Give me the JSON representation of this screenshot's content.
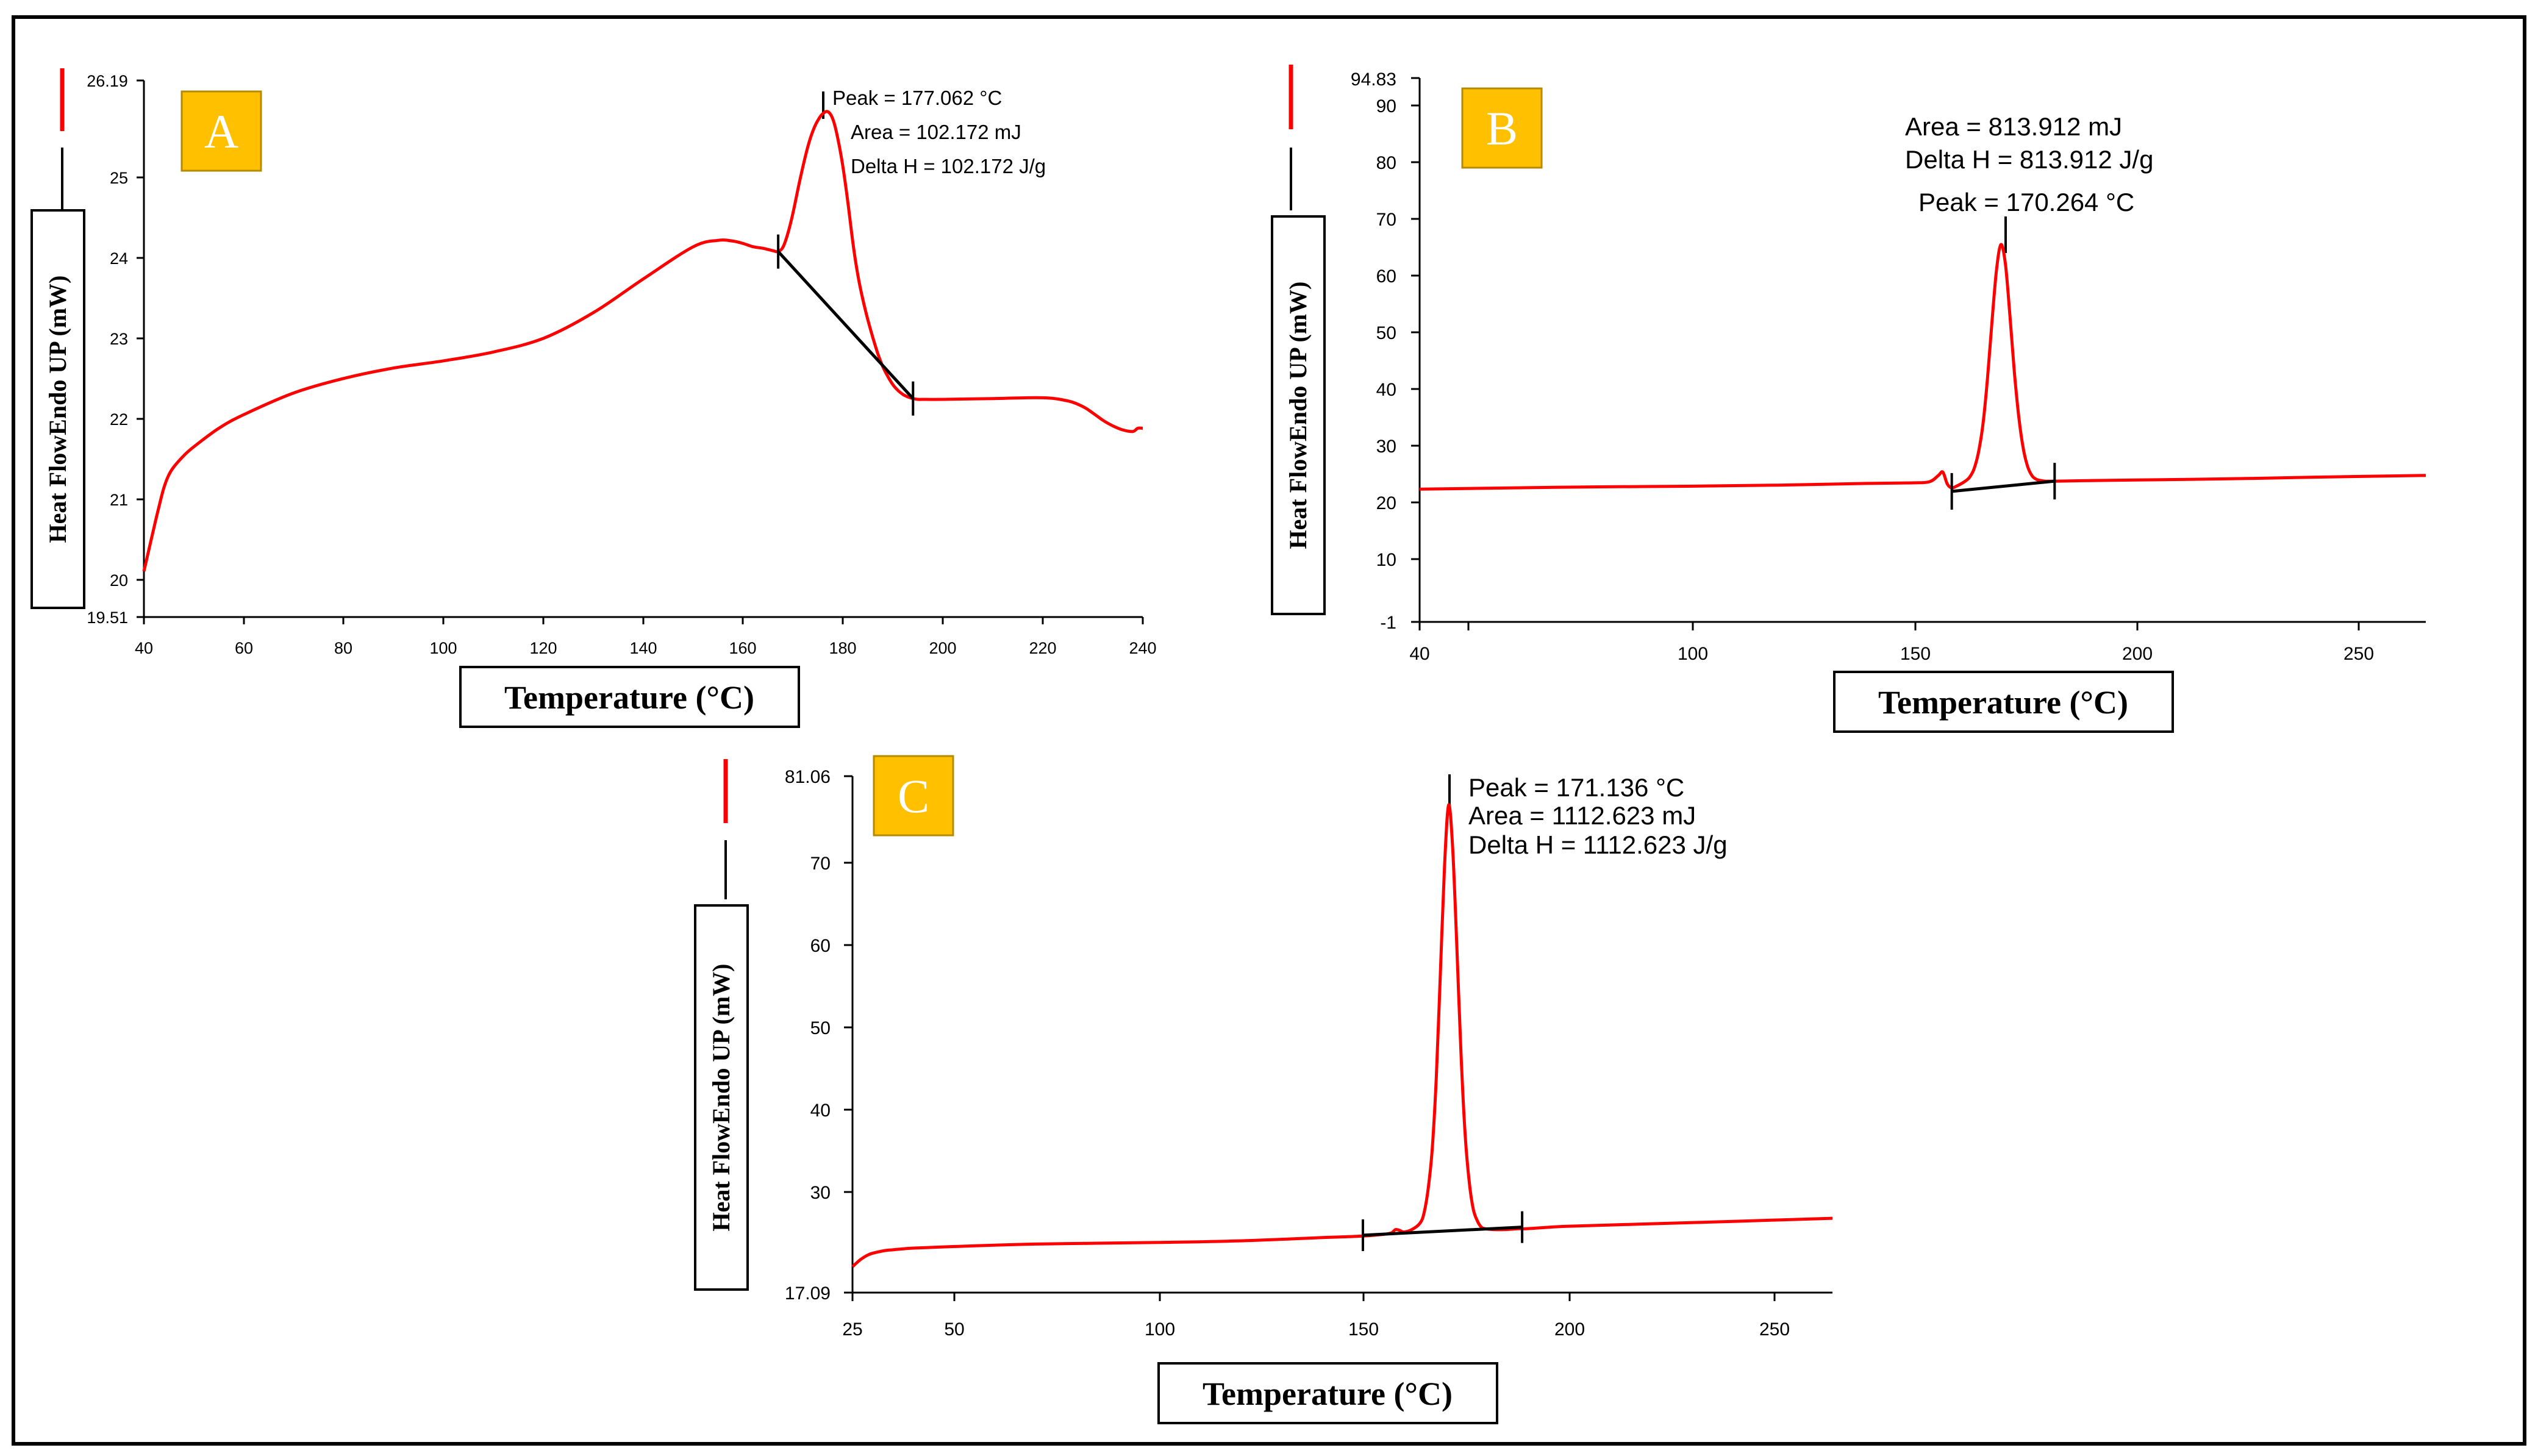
{
  "colors": {
    "curve": "#ff0000",
    "baseline": "#000000",
    "badge_fill": "#ffc000",
    "badge_stroke": "#b48a00"
  },
  "chart_data": [
    {
      "panel": "A",
      "type": "line",
      "xlabel": "Temperature (°C)",
      "ylabel": "Heat FlowEndo UP (mW)",
      "xlim": [
        40,
        240
      ],
      "ylim": [
        19.51,
        26.19
      ],
      "xticks": [
        "40",
        "60",
        "80",
        "100",
        "120",
        "140",
        "160",
        "180",
        "200",
        "220",
        "240"
      ],
      "yticks": [
        "19.51",
        "20",
        "21",
        "22",
        "23",
        "24",
        "25",
        "26.19"
      ],
      "annotations": [
        "Peak = 177.062 °C",
        "Area = 102.172 mJ",
        "Delta H = 102.172 J/g"
      ],
      "x": [
        40,
        41,
        42,
        43,
        44,
        45,
        46,
        48,
        50,
        55,
        60,
        70,
        80,
        90,
        100,
        110,
        120,
        130,
        140,
        150,
        155,
        158,
        160,
        162,
        164,
        166,
        167,
        168,
        169,
        170,
        171,
        172,
        173,
        174,
        175,
        176,
        177,
        178,
        179,
        180,
        181,
        182,
        183,
        184,
        185,
        186,
        187,
        188,
        189,
        190,
        191,
        192,
        193,
        194,
        195,
        196,
        200,
        210,
        220,
        225,
        228,
        230,
        232,
        234,
        236,
        238,
        239,
        240
      ],
      "y": [
        20.08,
        20.35,
        20.62,
        20.88,
        21.12,
        21.28,
        21.38,
        21.52,
        21.63,
        21.86,
        22.03,
        22.3,
        22.48,
        22.61,
        22.7,
        22.81,
        22.98,
        23.3,
        23.72,
        24.12,
        24.2,
        24.19,
        24.16,
        24.12,
        24.1,
        24.07,
        24.06,
        24.12,
        24.3,
        24.55,
        24.85,
        25.13,
        25.38,
        25.57,
        25.7,
        25.78,
        25.8,
        25.7,
        25.45,
        25.1,
        24.65,
        24.15,
        23.75,
        23.45,
        23.2,
        22.98,
        22.78,
        22.62,
        22.5,
        22.4,
        22.33,
        22.28,
        22.25,
        22.23,
        22.22,
        22.22,
        22.22,
        22.23,
        22.24,
        22.2,
        22.13,
        22.05,
        21.96,
        21.89,
        21.84,
        21.82,
        21.86,
        21.86
      ],
      "baseline": {
        "x": [
          167,
          194
        ],
        "y": [
          24.06,
          22.23
        ]
      },
      "peak_marker_x": 177.062
    },
    {
      "panel": "B",
      "type": "line",
      "xlabel": "Temperature (°C)",
      "ylabel": "Heat FlowEndo UP (mW)",
      "xlim": [
        40,
        265
      ],
      "ylim": [
        -1,
        94.83
      ],
      "xticks": [
        "40",
        "100",
        "150",
        "200",
        "250"
      ],
      "yticks": [
        "-1",
        "10",
        "20",
        "30",
        "40",
        "50",
        "60",
        "70",
        "80",
        "90",
        "94.83"
      ],
      "annotations": [
        "Area = 813.912 mJ",
        "Delta H = 813.912 J/g",
        "Peak = 170.264 °C"
      ],
      "x": [
        40,
        60,
        80,
        100,
        120,
        140,
        150,
        154,
        156,
        157,
        158,
        159,
        160,
        161,
        162,
        163,
        164,
        165,
        166,
        167,
        168,
        169,
        170,
        171,
        172,
        173,
        174,
        175,
        176,
        177,
        178,
        179,
        180,
        181,
        182,
        190,
        200,
        220,
        240,
        265
      ],
      "y": [
        22.4,
        22.6,
        22.8,
        22.9,
        23.1,
        23.4,
        23.5,
        23.7,
        24.8,
        25.4,
        23.3,
        22.6,
        22.9,
        23.3,
        23.8,
        24.5,
        26,
        29,
        34,
        42,
        52,
        61,
        65.5,
        62,
        53,
        43,
        35,
        29.5,
        26.3,
        24.7,
        24.1,
        23.9,
        23.8,
        23.8,
        23.8,
        23.9,
        24,
        24.2,
        24.5,
        24.8
      ],
      "baseline": {
        "x": [
          159,
          182
        ],
        "y": [
          22.0,
          23.8
        ]
      },
      "peak_marker_x": 170.264
    },
    {
      "panel": "C",
      "type": "line",
      "xlabel": "Temperature (°C)",
      "ylabel": "Heat FlowEndo UP (mW)",
      "xlim": [
        25,
        265
      ],
      "ylim": [
        17.09,
        81.06
      ],
      "xticks": [
        "25",
        "50",
        "100",
        "150",
        "200",
        "250"
      ],
      "yticks": [
        "17.09",
        "30",
        "40",
        "50",
        "60",
        "70",
        "81.06"
      ],
      "annotations": [
        "Peak = 171.136 °C",
        "Area = 1112.623 mJ",
        "Delta H = 1112.623 J/g"
      ],
      "x": [
        25,
        27,
        29,
        31,
        33,
        35,
        40,
        50,
        70,
        100,
        120,
        140,
        150,
        155,
        157,
        158,
        159,
        160,
        162,
        164,
        165,
        166,
        167,
        168,
        169,
        170,
        171,
        172,
        173,
        174,
        175,
        176,
        177,
        178,
        179,
        180,
        182,
        185,
        188,
        190,
        200,
        220,
        240,
        265
      ],
      "y": [
        20.3,
        21.2,
        21.8,
        22.1,
        22.3,
        22.4,
        22.6,
        22.8,
        23.1,
        23.3,
        23.5,
        23.9,
        24.1,
        24.3,
        24.5,
        24.9,
        24.8,
        24.6,
        24.9,
        25.7,
        27,
        30,
        35,
        44,
        57,
        70,
        77.5,
        72,
        60,
        47,
        37,
        31,
        27.5,
        26,
        25.2,
        25,
        24.9,
        24.9,
        25,
        25,
        25.3,
        25.6,
        25.9,
        26.3
      ],
      "baseline": {
        "x": [
          150,
          189
        ],
        "y": [
          24.2,
          25.2
        ]
      },
      "peak_marker_x": 171.136
    }
  ]
}
